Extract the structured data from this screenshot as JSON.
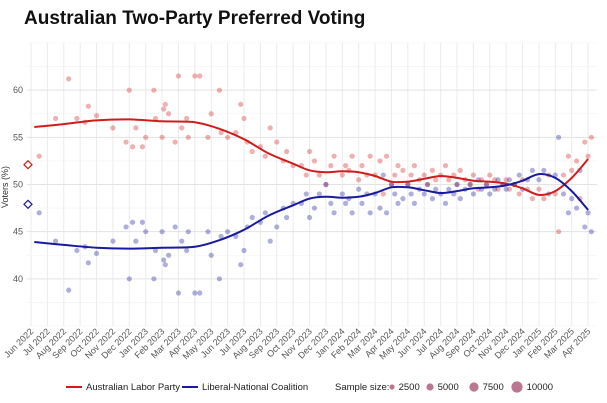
{
  "chart_data": {
    "type": "scatter",
    "title": "Australian Two-Party Preferred Voting",
    "xlabel": "",
    "ylabel": "Voters (%)",
    "ylim": [
      35,
      65
    ],
    "yticks": [
      40,
      45,
      50,
      55,
      60
    ],
    "grid": true,
    "legend_position": "bottom",
    "legend_size_title": "Sample size:",
    "size_legend": [
      2500,
      5000,
      7500,
      10000
    ],
    "x_tick_labels": [
      "Jun 2022",
      "Jul 2022",
      "Aug 2022",
      "Sep 2022",
      "Oct 2022",
      "Nov 2022",
      "Dec 2022",
      "Jan 2023",
      "Feb 2023",
      "Mar 2023",
      "Apr 2023",
      "May 2023",
      "Jun 2023",
      "Jul 2023",
      "Aug 2023",
      "Sep 2023",
      "Oct 2023",
      "Nov 2023",
      "Dec 2023",
      "Jan 2024",
      "Feb 2024",
      "Mar 2024",
      "Apr 2024",
      "May 2024",
      "Jun 2024",
      "Jul 2024",
      "Aug 2024",
      "Sep 2024",
      "Oct 2024",
      "Nov 2024",
      "Dec 2024",
      "Jan 2025",
      "Feb 2025",
      "Mar 2025",
      "Apr 2025"
    ],
    "x_domain_months": [
      0,
      34.3
    ],
    "election_result": {
      "x": -0.5,
      "alp": 52.1,
      "lnp": 47.9
    },
    "series": [
      {
        "name": "Australian Labor Party",
        "color": "#d01c1c",
        "trend": [
          [
            0.2,
            56.1
          ],
          [
            2,
            56.4
          ],
          [
            4,
            56.8
          ],
          [
            6,
            56.9
          ],
          [
            8,
            56.7
          ],
          [
            10,
            56.6
          ],
          [
            11.5,
            55.9
          ],
          [
            13,
            54.8
          ],
          [
            14.5,
            53.3
          ],
          [
            16,
            52.2
          ],
          [
            17,
            51.5
          ],
          [
            18,
            51.3
          ],
          [
            19,
            51.4
          ],
          [
            20,
            51.3
          ],
          [
            21,
            50.9
          ],
          [
            22,
            50.3
          ],
          [
            23,
            50.3
          ],
          [
            24,
            50.6
          ],
          [
            25,
            50.9
          ],
          [
            26,
            50.7
          ],
          [
            27,
            50.4
          ],
          [
            28,
            50.3
          ],
          [
            29,
            50.1
          ],
          [
            30,
            49.6
          ],
          [
            31,
            48.9
          ],
          [
            32,
            49.3
          ],
          [
            33,
            50.7
          ],
          [
            34,
            52.7
          ]
        ],
        "polls": [
          [
            0.5,
            53.0
          ],
          [
            1.5,
            57.0
          ],
          [
            2.3,
            61.2
          ],
          [
            2.8,
            57.0
          ],
          [
            3.3,
            56.6
          ],
          [
            3.5,
            58.3
          ],
          [
            4,
            57.3
          ],
          [
            5,
            56.0
          ],
          [
            5.8,
            54.5
          ],
          [
            6.0,
            60.0
          ],
          [
            6.2,
            54.0
          ],
          [
            6.4,
            56.0
          ],
          [
            6.8,
            54.0
          ],
          [
            7.0,
            55.0
          ],
          [
            7.5,
            60.0
          ],
          [
            7.6,
            57.0
          ],
          [
            8.0,
            55.0
          ],
          [
            8.1,
            58.0
          ],
          [
            8.2,
            58.5
          ],
          [
            8.4,
            57.5
          ],
          [
            8.8,
            54.5
          ],
          [
            9.0,
            61.5
          ],
          [
            9.2,
            56.0
          ],
          [
            9.5,
            57.0
          ],
          [
            9.6,
            55.0
          ],
          [
            10.0,
            61.5
          ],
          [
            10.3,
            61.5
          ],
          [
            10.8,
            55.0
          ],
          [
            11.0,
            57.5
          ],
          [
            11.5,
            60.0
          ],
          [
            11.6,
            55.5
          ],
          [
            12.0,
            55.0
          ],
          [
            12.5,
            55.5
          ],
          [
            12.8,
            58.5
          ],
          [
            13.0,
            57.0
          ],
          [
            13.2,
            54.5
          ],
          [
            13.5,
            53.5
          ],
          [
            14.0,
            54.0
          ],
          [
            14.3,
            53.0
          ],
          [
            14.6,
            56.0
          ],
          [
            15.0,
            54.5
          ],
          [
            15.4,
            52.5
          ],
          [
            15.6,
            53.5
          ],
          [
            16.0,
            52.0
          ],
          [
            16.5,
            52.0
          ],
          [
            16.8,
            51.0
          ],
          [
            17.0,
            53.5
          ],
          [
            17.3,
            52.5
          ],
          [
            17.6,
            51.0
          ],
          [
            18.0,
            50.0
          ],
          [
            18.3,
            52.0
          ],
          [
            18.5,
            53.0
          ],
          [
            19.0,
            51.0
          ],
          [
            19.2,
            52.0
          ],
          [
            19.4,
            51.5
          ],
          [
            19.6,
            53.0
          ],
          [
            20.0,
            50.5
          ],
          [
            20.2,
            52.0
          ],
          [
            20.5,
            51.0
          ],
          [
            20.7,
            53.0
          ],
          [
            21.0,
            51.0
          ],
          [
            21.3,
            52.5
          ],
          [
            21.5,
            49.0
          ],
          [
            21.7,
            53.0
          ],
          [
            22.0,
            50.0
          ],
          [
            22.2,
            51.0
          ],
          [
            22.4,
            52.0
          ],
          [
            22.7,
            51.5
          ],
          [
            23.0,
            50.0
          ],
          [
            23.2,
            51.0
          ],
          [
            23.4,
            52.0
          ],
          [
            23.7,
            50.5
          ],
          [
            24.0,
            51.0
          ],
          [
            24.2,
            50.0
          ],
          [
            24.5,
            51.5
          ],
          [
            24.7,
            50.5
          ],
          [
            25.0,
            51.0
          ],
          [
            25.3,
            52.0
          ],
          [
            25.5,
            50.5
          ],
          [
            25.8,
            51.0
          ],
          [
            26.0,
            50.0
          ],
          [
            26.2,
            51.5
          ],
          [
            26.5,
            50.5
          ],
          [
            26.8,
            50.0
          ],
          [
            27.0,
            51.0
          ],
          [
            27.3,
            49.5
          ],
          [
            27.5,
            50.5
          ],
          [
            27.8,
            50.0
          ],
          [
            28.0,
            51.0
          ],
          [
            28.3,
            50.5
          ],
          [
            28.5,
            49.5
          ],
          [
            28.8,
            50.0
          ],
          [
            29.0,
            50.5
          ],
          [
            29.2,
            49.5
          ],
          [
            29.5,
            50.0
          ],
          [
            29.8,
            49.0
          ],
          [
            30.0,
            50.5
          ],
          [
            30.3,
            49.5
          ],
          [
            30.6,
            48.5
          ],
          [
            31.0,
            49.5
          ],
          [
            31.3,
            48.5
          ],
          [
            31.6,
            51.0
          ],
          [
            32.0,
            49.0
          ],
          [
            32.2,
            45.0
          ],
          [
            32.5,
            51.0
          ],
          [
            32.8,
            53.0
          ],
          [
            33.0,
            51.5
          ],
          [
            33.3,
            52.5
          ],
          [
            33.5,
            48.5
          ],
          [
            33.8,
            54.5
          ],
          [
            34.0,
            53.0
          ],
          [
            34.2,
            55.0
          ]
        ]
      },
      {
        "name": "Liberal-National Coalition",
        "color": "#1a1aa0",
        "trend": [
          [
            0.2,
            43.9
          ],
          [
            2,
            43.6
          ],
          [
            4,
            43.3
          ],
          [
            6,
            43.2
          ],
          [
            8,
            43.3
          ],
          [
            10,
            43.4
          ],
          [
            11.5,
            44.1
          ],
          [
            13,
            45.2
          ],
          [
            14.5,
            46.7
          ],
          [
            16,
            47.8
          ],
          [
            17,
            48.5
          ],
          [
            18,
            48.7
          ],
          [
            19,
            48.6
          ],
          [
            20,
            48.7
          ],
          [
            21,
            49.1
          ],
          [
            22,
            49.7
          ],
          [
            23,
            49.7
          ],
          [
            24,
            49.4
          ],
          [
            25,
            49.1
          ],
          [
            26,
            49.3
          ],
          [
            27,
            49.6
          ],
          [
            28,
            49.7
          ],
          [
            29,
            49.9
          ],
          [
            30,
            50.4
          ],
          [
            31,
            51.1
          ],
          [
            32,
            50.7
          ],
          [
            33,
            49.3
          ],
          [
            34,
            47.3
          ]
        ],
        "polls": [
          [
            0.5,
            47.0
          ],
          [
            1.5,
            44.0
          ],
          [
            2.3,
            38.8
          ],
          [
            2.8,
            43.0
          ],
          [
            3.3,
            43.4
          ],
          [
            3.5,
            41.7
          ],
          [
            4,
            42.7
          ],
          [
            5,
            44.0
          ],
          [
            5.8,
            45.5
          ],
          [
            6.0,
            40.0
          ],
          [
            6.2,
            46.0
          ],
          [
            6.4,
            44.0
          ],
          [
            6.8,
            46.0
          ],
          [
            7.0,
            45.0
          ],
          [
            7.5,
            40.0
          ],
          [
            7.6,
            43.0
          ],
          [
            8.0,
            45.0
          ],
          [
            8.1,
            42.0
          ],
          [
            8.2,
            41.5
          ],
          [
            8.4,
            42.5
          ],
          [
            8.8,
            45.5
          ],
          [
            9.0,
            38.5
          ],
          [
            9.2,
            44.0
          ],
          [
            9.5,
            43.0
          ],
          [
            9.6,
            45.0
          ],
          [
            10.0,
            38.5
          ],
          [
            10.3,
            38.5
          ],
          [
            10.8,
            45.0
          ],
          [
            11.0,
            42.5
          ],
          [
            11.5,
            40.0
          ],
          [
            11.6,
            44.5
          ],
          [
            12.0,
            45.0
          ],
          [
            12.5,
            44.5
          ],
          [
            12.8,
            41.5
          ],
          [
            13.0,
            43.0
          ],
          [
            13.2,
            45.5
          ],
          [
            13.5,
            46.5
          ],
          [
            14.0,
            46.0
          ],
          [
            14.3,
            47.0
          ],
          [
            14.6,
            44.0
          ],
          [
            15.0,
            45.5
          ],
          [
            15.4,
            47.5
          ],
          [
            15.6,
            46.5
          ],
          [
            16.0,
            48.0
          ],
          [
            16.5,
            48.0
          ],
          [
            16.8,
            49.0
          ],
          [
            17.0,
            46.5
          ],
          [
            17.3,
            47.5
          ],
          [
            17.6,
            49.0
          ],
          [
            18.0,
            50.0
          ],
          [
            18.3,
            48.0
          ],
          [
            18.5,
            47.0
          ],
          [
            19.0,
            49.0
          ],
          [
            19.2,
            48.0
          ],
          [
            19.4,
            48.5
          ],
          [
            19.6,
            47.0
          ],
          [
            20.0,
            49.5
          ],
          [
            20.2,
            48.0
          ],
          [
            20.5,
            49.0
          ],
          [
            20.7,
            47.0
          ],
          [
            21.0,
            49.0
          ],
          [
            21.3,
            47.5
          ],
          [
            21.5,
            51.0
          ],
          [
            21.7,
            47.0
          ],
          [
            22.0,
            50.0
          ],
          [
            22.2,
            49.0
          ],
          [
            22.4,
            48.0
          ],
          [
            22.7,
            48.5
          ],
          [
            23.0,
            50.0
          ],
          [
            23.2,
            49.0
          ],
          [
            23.4,
            48.0
          ],
          [
            23.7,
            49.5
          ],
          [
            24.0,
            49.0
          ],
          [
            24.2,
            50.0
          ],
          [
            24.5,
            48.5
          ],
          [
            24.7,
            49.5
          ],
          [
            25.0,
            49.0
          ],
          [
            25.3,
            48.0
          ],
          [
            25.5,
            49.5
          ],
          [
            25.8,
            49.0
          ],
          [
            26.0,
            50.0
          ],
          [
            26.2,
            48.5
          ],
          [
            26.5,
            49.5
          ],
          [
            26.8,
            50.0
          ],
          [
            27.0,
            49.0
          ],
          [
            27.3,
            50.5
          ],
          [
            27.5,
            49.5
          ],
          [
            27.8,
            50.0
          ],
          [
            28.0,
            49.0
          ],
          [
            28.3,
            49.5
          ],
          [
            28.5,
            50.5
          ],
          [
            28.8,
            50.0
          ],
          [
            29.0,
            49.5
          ],
          [
            29.2,
            50.5
          ],
          [
            29.5,
            50.0
          ],
          [
            29.8,
            51.0
          ],
          [
            30.0,
            49.5
          ],
          [
            30.3,
            50.5
          ],
          [
            30.6,
            51.5
          ],
          [
            31.0,
            50.5
          ],
          [
            31.3,
            51.5
          ],
          [
            31.6,
            49.0
          ],
          [
            32.0,
            51.0
          ],
          [
            32.2,
            55.0
          ],
          [
            32.5,
            49.0
          ],
          [
            32.8,
            47.0
          ],
          [
            33.0,
            48.5
          ],
          [
            33.3,
            47.5
          ],
          [
            33.5,
            51.5
          ],
          [
            33.8,
            45.5
          ],
          [
            34.0,
            47.0
          ],
          [
            34.2,
            45.0
          ]
        ]
      }
    ]
  }
}
